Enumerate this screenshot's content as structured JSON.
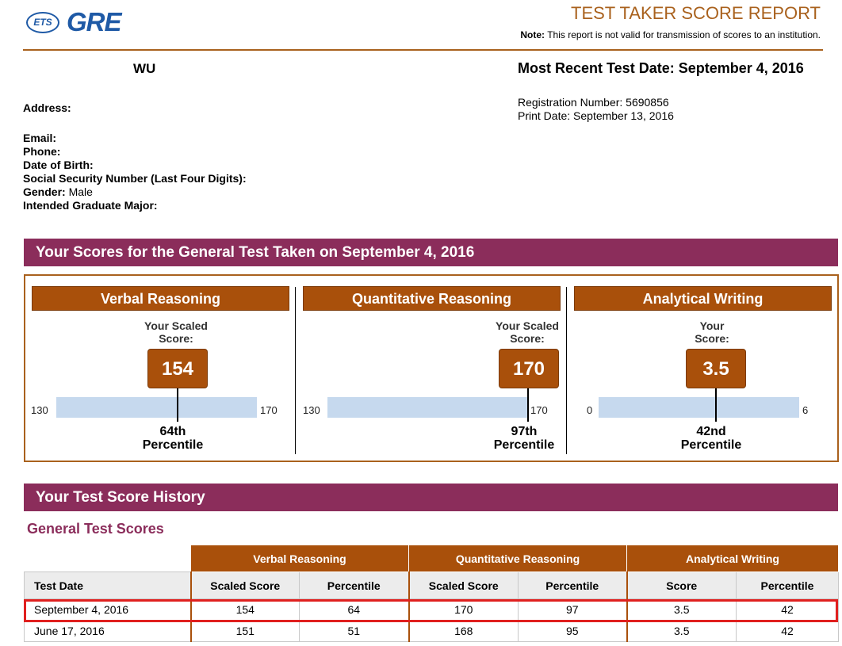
{
  "header": {
    "ets_logo": "ETS",
    "gre_logo": "GRE",
    "report_title": "TEST TAKER SCORE REPORT",
    "note_label": "Note:",
    "note_text": "This report is not valid for transmission of scores to an institution."
  },
  "candidate": {
    "name": "WU",
    "most_recent_test_date": "Most Recent Test Date: September 4, 2016",
    "registration": "Registration Number: 5690856",
    "print_date": "Print Date: September 13, 2016",
    "address_label": "Address:",
    "email_label": "Email:",
    "phone_label": "Phone:",
    "dob_label": "Date of Birth:",
    "ssn_label": "Social Security Number (Last Four Digits):",
    "gender_label": "Gender:",
    "gender_value": "Male",
    "major_label": "Intended Graduate Major:"
  },
  "scores_section": {
    "banner": "Your Scores for the General Test Taken on September 4, 2016",
    "panels": [
      {
        "title": "Verbal Reasoning",
        "score_label_line1": "Your Scaled",
        "score_label_line2": "Score:",
        "score": "154",
        "min": "130",
        "max": "170",
        "score_fraction": 0.6,
        "percentile_line1": "64th",
        "percentile_line2": "Percentile"
      },
      {
        "title": "Quantitative Reasoning",
        "score_label_line1": "Your Scaled",
        "score_label_line2": "Score:",
        "score": "170",
        "min": "130",
        "max": "170",
        "score_fraction": 1.0,
        "percentile_line1": "97th",
        "percentile_line2": "Percentile"
      },
      {
        "title": "Analytical Writing",
        "score_label_line1": "Your",
        "score_label_line2": "Score:",
        "score": "3.5",
        "min": "0",
        "max": "6",
        "score_fraction": 0.583,
        "percentile_line1": "42nd",
        "percentile_line2": "Percentile"
      }
    ]
  },
  "history": {
    "banner": "Your Test Score History",
    "subtitle": "General Test Scores",
    "group_headers": [
      "Verbal Reasoning",
      "Quantitative Reasoning",
      "Analytical Writing"
    ],
    "sub_headers": [
      "Test Date",
      "Scaled Score",
      "Percentile",
      "Scaled Score",
      "Percentile",
      "Score",
      "Percentile"
    ],
    "rows": [
      [
        "September 4, 2016",
        "154",
        "64",
        "170",
        "97",
        "3.5",
        "42"
      ],
      [
        "June 17, 2016",
        "151",
        "51",
        "168",
        "95",
        "3.5",
        "42"
      ]
    ]
  },
  "colors": {
    "accent": "#a9500b",
    "banner": "#8b2d5b",
    "bar": "#c6d9ee",
    "highlight": "#e0201f"
  }
}
